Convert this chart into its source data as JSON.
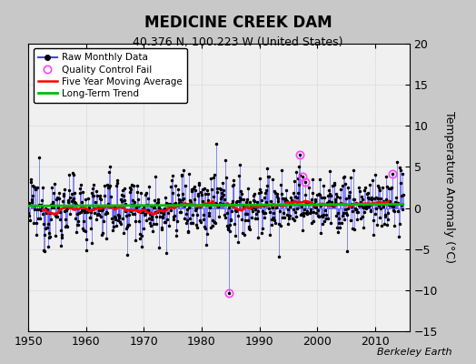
{
  "title": "MEDICINE CREEK DAM",
  "subtitle": "40.376 N, 100.223 W (United States)",
  "ylabel": "Temperature Anomaly (°C)",
  "watermark": "Berkeley Earth",
  "xlim": [
    1950,
    2016
  ],
  "ylim": [
    -15,
    20
  ],
  "yticks": [
    -15,
    -10,
    -5,
    0,
    5,
    10,
    15,
    20
  ],
  "xticks": [
    1950,
    1960,
    1970,
    1980,
    1990,
    2000,
    2010
  ],
  "fig_bg_color": "#c8c8c8",
  "plot_bg_color": "#f0f0f0",
  "raw_line_color": "#4444ff",
  "raw_dot_color": "#000000",
  "qc_fail_color": "#ff44ff",
  "moving_avg_color": "#ff0000",
  "trend_color": "#00bb00",
  "seed": 12345,
  "n_months": 780,
  "start_year": 1950,
  "qc_fail_indices": [
    416,
    564,
    570,
    576,
    756
  ],
  "qc_fail_values": [
    -10.3,
    6.5,
    3.8,
    3.2,
    4.2
  ],
  "trend_value": 0.3
}
